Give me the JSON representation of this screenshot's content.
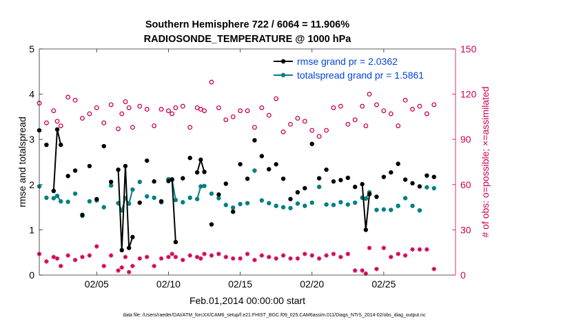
{
  "chart_data": {
    "type": "scatter",
    "title_line1": "Southern Hemisphere 722 / 6064 = 11.906%",
    "title_line2": "RADIOSONDE_TEMPERATURE @ 1000 hPa",
    "xlabel": "Feb.01,2014 00:00:00 start",
    "ylabel_left": "rmse and totalspread",
    "ylabel_right": "# of obs: o=possible; ×=assimilated",
    "footer": "data file: /Users/raeder/DAI/ATM_forcXX/CAM6_setup/f.e21.FHIST_BGC.f09_025.CAM6assim.011/Diags_NTrS_2014-02/obs_diag_output.nc",
    "xlim": [
      1,
      30
    ],
    "ylim_left": [
      0,
      5
    ],
    "ylim_right": [
      0,
      150
    ],
    "xticks": [
      5,
      10,
      15,
      20,
      25
    ],
    "xtick_labels": [
      "02/05",
      "02/10",
      "02/15",
      "02/20",
      "02/25"
    ],
    "yticks_left": [
      0,
      1,
      2,
      3,
      4,
      5
    ],
    "yticks_left_labels": [
      "0",
      "1",
      "2",
      "3",
      "4",
      "5"
    ],
    "yticks_right": [
      0,
      30,
      60,
      90,
      120,
      150
    ],
    "yticks_right_labels": [
      "0",
      "30",
      "60",
      "90",
      "120",
      "150"
    ],
    "legend": [
      {
        "label": "rmse grand pr = 2.0362",
        "color": "#000000"
      },
      {
        "label": "totalspread grand pr = 1.5861",
        "color": "#008080"
      }
    ],
    "colors": {
      "rmse": "#000000",
      "spread": "#008080",
      "obs": "#cc0055",
      "legend_text": "#0044dd"
    },
    "series": [
      {
        "name": "rmse",
        "axis": "left",
        "x": [
          1.0,
          1.5,
          2.0,
          2.25,
          2.5,
          3.0,
          3.5,
          4.0,
          4.5,
          5.0,
          5.5,
          6.0,
          6.5,
          6.75,
          7.0,
          7.25,
          7.5,
          8.0,
          8.5,
          9.0,
          9.5,
          10.0,
          10.25,
          10.5,
          11.0,
          11.5,
          12.0,
          12.25,
          12.5,
          13.0,
          13.5,
          14.0,
          14.5,
          15.0,
          15.5,
          16.0,
          16.5,
          17.0,
          17.5,
          18.0,
          18.5,
          19.0,
          19.5,
          20.0,
          20.5,
          21.0,
          21.5,
          22.0,
          22.5,
          23.0,
          23.5,
          23.75,
          24.0,
          24.5,
          25.0,
          25.5,
          26.0,
          26.5,
          27.0,
          27.5,
          28.0,
          28.5
        ],
        "y": [
          3.2,
          2.88,
          1.86,
          3.22,
          2.88,
          2.19,
          2.31,
          1.33,
          2.41,
          1.68,
          2.85,
          2.06,
          2.33,
          0.55,
          2.41,
          0.6,
          0.84,
          1.6,
          2.53,
          2.07,
          1.63,
          2.08,
          2.11,
          0.73,
          2.14,
          2.59,
          2.27,
          2.55,
          2.28,
          1.12,
          1.78,
          2.02,
          1.4,
          2.45,
          2.13,
          2.98,
          2.63,
          2.34,
          2.45,
          2.13,
          1.68,
          1.83,
          1.92,
          2.9,
          2.14,
          2.33,
          2.07,
          2.1,
          2.15,
          1.95,
          2.01,
          1.0,
          1.79,
          1.73,
          2.17,
          2.27,
          2.46,
          2.11,
          2.03,
          1.96,
          2.2,
          2.17
        ]
      },
      {
        "name": "totalspread",
        "axis": "left",
        "x": [
          1.0,
          1.5,
          2.0,
          2.25,
          2.5,
          3.0,
          3.5,
          4.0,
          4.5,
          5.0,
          5.5,
          6.0,
          6.5,
          6.75,
          7.0,
          7.25,
          7.5,
          8.0,
          8.5,
          9.0,
          9.5,
          10.0,
          10.25,
          10.5,
          11.0,
          11.5,
          12.0,
          12.25,
          12.5,
          13.0,
          13.5,
          14.0,
          14.5,
          15.0,
          15.5,
          16.0,
          16.5,
          17.0,
          17.5,
          18.0,
          18.5,
          19.0,
          19.5,
          20.0,
          20.5,
          21.0,
          21.5,
          22.0,
          22.5,
          23.0,
          23.5,
          23.75,
          24.0,
          24.5,
          25.0,
          25.5,
          26.0,
          26.5,
          27.0,
          27.5,
          28.0,
          28.5
        ],
        "y": [
          1.96,
          1.71,
          1.7,
          1.75,
          1.63,
          1.62,
          1.8,
          1.31,
          1.63,
          1.65,
          1.5,
          1.98,
          1.59,
          1.43,
          1.7,
          1.58,
          1.89,
          2.06,
          1.74,
          1.71,
          1.61,
          2.12,
          2.12,
          1.66,
          1.61,
          1.71,
          1.68,
          1.96,
          1.97,
          1.8,
          1.7,
          1.55,
          1.49,
          1.57,
          1.59,
          2.31,
          1.65,
          1.59,
          1.53,
          1.5,
          1.48,
          1.58,
          1.53,
          1.6,
          1.95,
          1.56,
          1.55,
          1.61,
          1.56,
          1.6,
          1.71,
          1.69,
          1.83,
          1.44,
          1.45,
          1.44,
          1.53,
          1.7,
          1.53,
          1.43,
          1.94,
          1.92
        ]
      },
      {
        "name": "obs possible",
        "axis": "right",
        "x": [
          1.0,
          1.5,
          2.0,
          2.25,
          2.5,
          3.0,
          3.5,
          4.0,
          4.5,
          5.0,
          5.5,
          6.0,
          6.5,
          6.75,
          7.0,
          7.25,
          7.5,
          8.0,
          8.5,
          9.0,
          9.5,
          10.0,
          10.25,
          10.5,
          11.0,
          11.5,
          12.0,
          12.25,
          12.5,
          13.0,
          13.5,
          14.0,
          14.5,
          15.0,
          15.5,
          16.0,
          16.5,
          17.0,
          17.5,
          18.0,
          18.5,
          19.0,
          19.5,
          20.0,
          20.5,
          21.0,
          21.5,
          22.0,
          22.5,
          23.0,
          23.5,
          23.75,
          24.0,
          24.5,
          25.0,
          25.5,
          26.0,
          26.5,
          27.0,
          27.5,
          28.0,
          28.5
        ],
        "y": [
          114,
          101,
          109,
          102,
          99,
          118,
          116,
          104,
          107,
          111,
          101,
          113,
          97,
          107,
          115,
          111,
          98,
          112,
          110,
          99,
          110,
          109,
          107,
          111,
          112,
          98,
          111,
          110,
          109,
          128,
          111,
          103,
          105,
          109,
          109,
          98,
          111,
          106,
          117,
          95,
          100,
          104,
          102,
          96,
          92,
          96,
          111,
          112,
          100,
          103,
          112,
          99,
          120,
          113,
          109,
          107,
          99,
          116,
          110,
          112,
          107,
          113
        ]
      },
      {
        "name": "obs assimilated",
        "axis": "right",
        "x": [
          1.0,
          1.5,
          2.0,
          2.25,
          2.5,
          3.0,
          3.5,
          4.0,
          4.5,
          5.0,
          5.5,
          6.0,
          6.5,
          6.75,
          7.0,
          7.25,
          7.5,
          8.0,
          8.5,
          9.0,
          9.5,
          10.0,
          10.25,
          10.5,
          11.0,
          11.5,
          12.0,
          12.25,
          12.5,
          13.0,
          13.5,
          14.0,
          14.5,
          15.0,
          15.5,
          16.0,
          16.5,
          17.0,
          17.5,
          18.0,
          18.5,
          19.0,
          19.5,
          20.0,
          20.5,
          21.0,
          21.5,
          22.0,
          22.5,
          23.0,
          23.5,
          23.75,
          24.0,
          24.5,
          25.0,
          25.5,
          26.0,
          26.5,
          27.0,
          27.5,
          28.0,
          28.5
        ],
        "y": [
          14,
          9,
          12,
          11,
          6,
          13,
          10,
          12,
          13,
          19,
          6,
          13,
          3,
          5,
          12,
          2,
          6,
          11,
          12,
          6,
          11,
          12,
          14,
          12,
          10,
          13,
          12,
          11,
          14,
          13,
          14,
          12,
          11,
          11,
          14,
          10,
          13,
          12,
          11,
          13,
          11,
          11,
          14,
          13,
          11,
          13,
          14,
          12,
          14,
          3,
          3,
          1,
          18,
          4,
          18,
          12,
          14,
          13,
          17,
          17,
          17,
          4
        ]
      }
    ]
  }
}
